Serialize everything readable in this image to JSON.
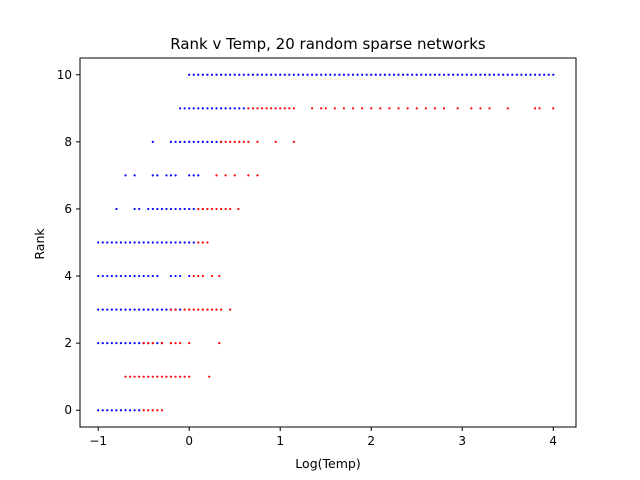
{
  "chart_data": {
    "type": "scatter",
    "title": "Rank v Temp, 20 random sparse networks",
    "xlabel": "Log(Temp)",
    "ylabel": "Rank",
    "xlim": [
      -1.2,
      4.25
    ],
    "ylim": [
      -0.5,
      10.5
    ],
    "xticks": [
      -1,
      0,
      1,
      2,
      3,
      4
    ],
    "yticks": [
      0,
      2,
      4,
      6,
      8,
      10
    ],
    "xtick_labels": [
      "−1",
      "0",
      "1",
      "2",
      "3",
      "4"
    ],
    "ytick_labels": [
      "0",
      "2",
      "4",
      "6",
      "8",
      "10"
    ],
    "grid": false,
    "legend": "none",
    "colors": {
      "blue": "#0000ff",
      "red": "#ff0000"
    },
    "series": [
      {
        "color": "blue",
        "points": [
          [
            -1.0,
            0
          ],
          [
            -0.95,
            0
          ],
          [
            -0.9,
            0
          ],
          [
            -0.85,
            0
          ],
          [
            -0.8,
            0
          ],
          [
            -0.75,
            0
          ],
          [
            -0.7,
            0
          ],
          [
            -0.65,
            0
          ],
          [
            -0.6,
            0
          ],
          [
            -0.55,
            0
          ],
          [
            -1.0,
            2
          ],
          [
            -0.95,
            2
          ],
          [
            -0.9,
            2
          ],
          [
            -0.85,
            2
          ],
          [
            -0.8,
            2
          ],
          [
            -0.75,
            2
          ],
          [
            -0.7,
            2
          ],
          [
            -0.65,
            2
          ],
          [
            -0.6,
            2
          ],
          [
            -0.55,
            2
          ],
          [
            -0.5,
            2
          ],
          [
            -0.45,
            2
          ],
          [
            -0.4,
            2
          ],
          [
            -0.35,
            2
          ],
          [
            -0.3,
            2
          ],
          [
            -1.0,
            3
          ],
          [
            -0.95,
            3
          ],
          [
            -0.9,
            3
          ],
          [
            -0.85,
            3
          ],
          [
            -0.8,
            3
          ],
          [
            -0.75,
            3
          ],
          [
            -0.7,
            3
          ],
          [
            -0.65,
            3
          ],
          [
            -0.6,
            3
          ],
          [
            -0.55,
            3
          ],
          [
            -0.5,
            3
          ],
          [
            -0.45,
            3
          ],
          [
            -0.4,
            3
          ],
          [
            -0.35,
            3
          ],
          [
            -0.3,
            3
          ],
          [
            -0.25,
            3
          ],
          [
            -0.2,
            3
          ],
          [
            -0.15,
            3
          ],
          [
            -0.1,
            3
          ],
          [
            -1.0,
            4
          ],
          [
            -0.95,
            4
          ],
          [
            -0.9,
            4
          ],
          [
            -0.85,
            4
          ],
          [
            -0.8,
            4
          ],
          [
            -0.75,
            4
          ],
          [
            -0.7,
            4
          ],
          [
            -0.65,
            4
          ],
          [
            -0.6,
            4
          ],
          [
            -0.55,
            4
          ],
          [
            -0.5,
            4
          ],
          [
            -0.45,
            4
          ],
          [
            -0.4,
            4
          ],
          [
            -0.35,
            4
          ],
          [
            -0.2,
            4
          ],
          [
            -0.15,
            4
          ],
          [
            -0.1,
            4
          ],
          [
            0.0,
            4
          ],
          [
            -1.0,
            5
          ],
          [
            -0.95,
            5
          ],
          [
            -0.9,
            5
          ],
          [
            -0.85,
            5
          ],
          [
            -0.8,
            5
          ],
          [
            -0.75,
            5
          ],
          [
            -0.7,
            5
          ],
          [
            -0.65,
            5
          ],
          [
            -0.6,
            5
          ],
          [
            -0.55,
            5
          ],
          [
            -0.5,
            5
          ],
          [
            -0.45,
            5
          ],
          [
            -0.4,
            5
          ],
          [
            -0.35,
            5
          ],
          [
            -0.3,
            5
          ],
          [
            -0.25,
            5
          ],
          [
            -0.2,
            5
          ],
          [
            -0.15,
            5
          ],
          [
            -0.1,
            5
          ],
          [
            -0.05,
            5
          ],
          [
            0.0,
            5
          ],
          [
            0.05,
            5
          ],
          [
            -0.8,
            6
          ],
          [
            -0.6,
            6
          ],
          [
            -0.55,
            6
          ],
          [
            -0.45,
            6
          ],
          [
            -0.4,
            6
          ],
          [
            -0.35,
            6
          ],
          [
            -0.3,
            6
          ],
          [
            -0.25,
            6
          ],
          [
            -0.2,
            6
          ],
          [
            -0.15,
            6
          ],
          [
            -0.1,
            6
          ],
          [
            -0.05,
            6
          ],
          [
            0.0,
            6
          ],
          [
            0.05,
            6
          ],
          [
            -0.7,
            7
          ],
          [
            -0.6,
            7
          ],
          [
            -0.4,
            7
          ],
          [
            -0.35,
            7
          ],
          [
            -0.25,
            7
          ],
          [
            -0.2,
            7
          ],
          [
            -0.15,
            7
          ],
          [
            0.0,
            7
          ],
          [
            0.05,
            7
          ],
          [
            0.1,
            7
          ],
          [
            -0.4,
            8
          ],
          [
            -0.2,
            8
          ],
          [
            -0.15,
            8
          ],
          [
            -0.1,
            8
          ],
          [
            -0.05,
            8
          ],
          [
            0.0,
            8
          ],
          [
            0.05,
            8
          ],
          [
            0.1,
            8
          ],
          [
            0.15,
            8
          ],
          [
            0.2,
            8
          ],
          [
            0.25,
            8
          ],
          [
            0.3,
            8
          ],
          [
            0.35,
            8
          ],
          [
            -0.1,
            9
          ],
          [
            -0.05,
            9
          ],
          [
            0.0,
            9
          ],
          [
            0.05,
            9
          ],
          [
            0.1,
            9
          ],
          [
            0.15,
            9
          ],
          [
            0.2,
            9
          ],
          [
            0.25,
            9
          ],
          [
            0.3,
            9
          ],
          [
            0.35,
            9
          ],
          [
            0.4,
            9
          ],
          [
            0.45,
            9
          ],
          [
            0.5,
            9
          ],
          [
            0.55,
            9
          ],
          [
            0.6,
            9
          ],
          [
            0.0,
            10
          ],
          [
            0.05,
            10
          ],
          [
            0.1,
            10
          ],
          [
            0.15,
            10
          ],
          [
            0.2,
            10
          ],
          [
            0.25,
            10
          ],
          [
            0.3,
            10
          ],
          [
            0.35,
            10
          ],
          [
            0.4,
            10
          ],
          [
            0.45,
            10
          ],
          [
            0.5,
            10
          ],
          [
            0.55,
            10
          ],
          [
            0.6,
            10
          ],
          [
            0.65,
            10
          ],
          [
            0.7,
            10
          ],
          [
            0.75,
            10
          ],
          [
            0.8,
            10
          ],
          [
            0.85,
            10
          ],
          [
            0.9,
            10
          ],
          [
            0.95,
            10
          ],
          [
            1.0,
            10
          ],
          [
            1.05,
            10
          ],
          [
            1.1,
            10
          ],
          [
            1.15,
            10
          ],
          [
            1.2,
            10
          ],
          [
            1.25,
            10
          ],
          [
            1.3,
            10
          ],
          [
            1.35,
            10
          ],
          [
            1.4,
            10
          ],
          [
            1.45,
            10
          ],
          [
            1.5,
            10
          ],
          [
            1.55,
            10
          ],
          [
            1.6,
            10
          ],
          [
            1.65,
            10
          ],
          [
            1.7,
            10
          ],
          [
            1.75,
            10
          ],
          [
            1.8,
            10
          ],
          [
            1.85,
            10
          ],
          [
            1.9,
            10
          ],
          [
            1.95,
            10
          ],
          [
            2.0,
            10
          ],
          [
            2.05,
            10
          ],
          [
            2.1,
            10
          ],
          [
            2.15,
            10
          ],
          [
            2.2,
            10
          ],
          [
            2.25,
            10
          ],
          [
            2.3,
            10
          ],
          [
            2.35,
            10
          ],
          [
            2.4,
            10
          ],
          [
            2.45,
            10
          ],
          [
            2.5,
            10
          ],
          [
            2.55,
            10
          ],
          [
            2.6,
            10
          ],
          [
            2.65,
            10
          ],
          [
            2.7,
            10
          ],
          [
            2.75,
            10
          ],
          [
            2.8,
            10
          ],
          [
            2.85,
            10
          ],
          [
            2.9,
            10
          ],
          [
            2.95,
            10
          ],
          [
            3.0,
            10
          ],
          [
            3.05,
            10
          ],
          [
            3.1,
            10
          ],
          [
            3.15,
            10
          ],
          [
            3.2,
            10
          ],
          [
            3.25,
            10
          ],
          [
            3.3,
            10
          ],
          [
            3.35,
            10
          ],
          [
            3.4,
            10
          ],
          [
            3.45,
            10
          ],
          [
            3.5,
            10
          ],
          [
            3.55,
            10
          ],
          [
            3.6,
            10
          ],
          [
            3.65,
            10
          ],
          [
            3.7,
            10
          ],
          [
            3.75,
            10
          ],
          [
            3.8,
            10
          ],
          [
            3.85,
            10
          ],
          [
            3.9,
            10
          ],
          [
            3.95,
            10
          ],
          [
            4.0,
            10
          ]
        ]
      },
      {
        "color": "red",
        "points": [
          [
            -0.5,
            0
          ],
          [
            -0.45,
            0
          ],
          [
            -0.4,
            0
          ],
          [
            -0.35,
            0
          ],
          [
            -0.3,
            0
          ],
          [
            -0.7,
            1
          ],
          [
            -0.65,
            1
          ],
          [
            -0.6,
            1
          ],
          [
            -0.55,
            1
          ],
          [
            -0.5,
            1
          ],
          [
            -0.45,
            1
          ],
          [
            -0.4,
            1
          ],
          [
            -0.35,
            1
          ],
          [
            -0.3,
            1
          ],
          [
            -0.25,
            1
          ],
          [
            -0.2,
            1
          ],
          [
            -0.15,
            1
          ],
          [
            -0.1,
            1
          ],
          [
            -0.05,
            1
          ],
          [
            0.0,
            1
          ],
          [
            0.22,
            1
          ],
          [
            -0.5,
            2
          ],
          [
            -0.45,
            2
          ],
          [
            -0.4,
            2
          ],
          [
            -0.3,
            2
          ],
          [
            -0.2,
            2
          ],
          [
            -0.15,
            2
          ],
          [
            -0.1,
            2
          ],
          [
            0.0,
            2
          ],
          [
            0.33,
            2
          ],
          [
            -0.2,
            3
          ],
          [
            -0.15,
            3
          ],
          [
            -0.05,
            3
          ],
          [
            0.0,
            3
          ],
          [
            0.05,
            3
          ],
          [
            0.1,
            3
          ],
          [
            0.15,
            3
          ],
          [
            0.2,
            3
          ],
          [
            0.25,
            3
          ],
          [
            0.3,
            3
          ],
          [
            0.35,
            3
          ],
          [
            0.45,
            3
          ],
          [
            0.05,
            4
          ],
          [
            0.1,
            4
          ],
          [
            0.15,
            4
          ],
          [
            0.25,
            4
          ],
          [
            0.33,
            4
          ],
          [
            0.1,
            5
          ],
          [
            0.15,
            5
          ],
          [
            0.2,
            5
          ],
          [
            0.1,
            6
          ],
          [
            0.15,
            6
          ],
          [
            0.2,
            6
          ],
          [
            0.25,
            6
          ],
          [
            0.3,
            6
          ],
          [
            0.35,
            6
          ],
          [
            0.4,
            6
          ],
          [
            0.45,
            6
          ],
          [
            0.54,
            6
          ],
          [
            0.3,
            7
          ],
          [
            0.4,
            7
          ],
          [
            0.5,
            7
          ],
          [
            0.65,
            7
          ],
          [
            0.75,
            7
          ],
          [
            0.35,
            8
          ],
          [
            0.4,
            8
          ],
          [
            0.45,
            8
          ],
          [
            0.5,
            8
          ],
          [
            0.55,
            8
          ],
          [
            0.6,
            8
          ],
          [
            0.65,
            8
          ],
          [
            0.75,
            8
          ],
          [
            0.95,
            8
          ],
          [
            1.15,
            8
          ],
          [
            0.65,
            9
          ],
          [
            0.7,
            9
          ],
          [
            0.75,
            9
          ],
          [
            0.8,
            9
          ],
          [
            0.85,
            9
          ],
          [
            0.9,
            9
          ],
          [
            0.95,
            9
          ],
          [
            1.0,
            9
          ],
          [
            1.05,
            9
          ],
          [
            1.1,
            9
          ],
          [
            1.15,
            9
          ],
          [
            1.35,
            9
          ],
          [
            1.45,
            9
          ],
          [
            1.5,
            9
          ],
          [
            1.6,
            9
          ],
          [
            1.7,
            9
          ],
          [
            1.8,
            9
          ],
          [
            1.9,
            9
          ],
          [
            2.0,
            9
          ],
          [
            2.1,
            9
          ],
          [
            2.2,
            9
          ],
          [
            2.3,
            9
          ],
          [
            2.4,
            9
          ],
          [
            2.5,
            9
          ],
          [
            2.6,
            9
          ],
          [
            2.7,
            9
          ],
          [
            2.8,
            9
          ],
          [
            2.95,
            9
          ],
          [
            3.1,
            9
          ],
          [
            3.2,
            9
          ],
          [
            3.3,
            9
          ],
          [
            3.5,
            9
          ],
          [
            3.8,
            9
          ],
          [
            3.85,
            9
          ],
          [
            4.0,
            9
          ]
        ]
      }
    ]
  }
}
